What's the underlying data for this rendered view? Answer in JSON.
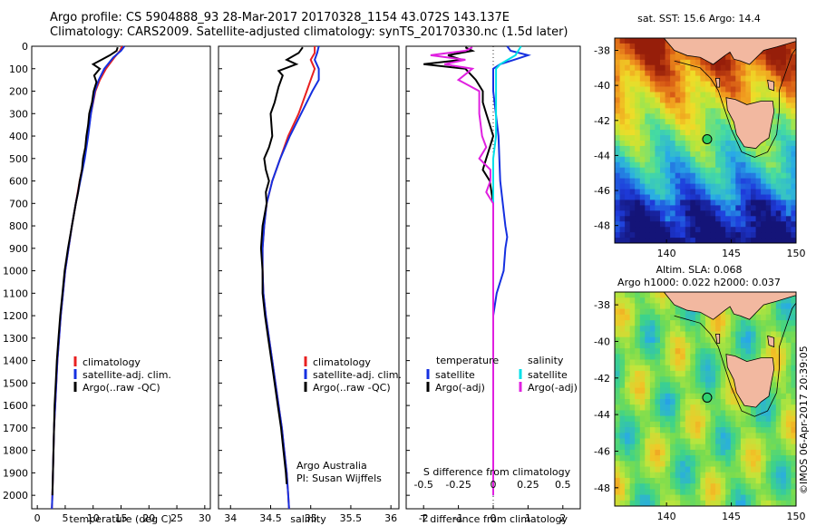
{
  "header": {
    "line1": "Argo profile: CS 5904888_93 28-Mar-2017 20170328_1154 43.072S 143.137E",
    "line2": "Climatology: CARS2009. Satellite-adjusted climatology: synTS_20170330.nc (1.5d later)"
  },
  "credit": "©IMOS 06-Apr-2017 20:39:05",
  "colors": {
    "climatology": "#e82020",
    "satellite": "#1530e0",
    "argo": "#000000",
    "sal_satellite": "#00e0e8",
    "sal_argo": "#e020e0",
    "land": "#f2b8a0"
  },
  "chart_data": [
    {
      "type": "line",
      "name": "temperature-profile",
      "xlabel": "temperature (deg C)",
      "ylabel": "",
      "xlim": [
        -1,
        31
      ],
      "ylim": [
        2060,
        0
      ],
      "xticks": [
        0,
        5,
        10,
        15,
        20,
        25,
        30
      ],
      "yticks": [
        0,
        100,
        200,
        300,
        400,
        500,
        600,
        700,
        800,
        900,
        1000,
        1100,
        1200,
        1300,
        1400,
        1500,
        1600,
        1700,
        1800,
        1900,
        2000
      ],
      "legend": [
        "climatology",
        "satellite-adj. clim.",
        "Argo(..raw -QC)"
      ],
      "series": [
        {
          "name": "climatology",
          "color": "#e82020",
          "depth": [
            0,
            20,
            50,
            100,
            150,
            200,
            300,
            400,
            500,
            600,
            700,
            800,
            900,
            1000,
            1100,
            1200,
            1300,
            1400,
            1500,
            1600,
            1700,
            1800,
            1900,
            2000,
            2060
          ],
          "values": [
            15.2,
            14.8,
            13.8,
            12.3,
            11.2,
            10.4,
            9.6,
            9.0,
            8.4,
            7.6,
            6.9,
            6.2,
            5.6,
            5.0,
            4.6,
            4.2,
            3.9,
            3.6,
            3.4,
            3.2,
            3.0,
            2.9,
            2.8,
            2.7,
            2.6
          ]
        },
        {
          "name": "satellite-adj. clim.",
          "color": "#1530e0",
          "depth": [
            0,
            20,
            50,
            100,
            150,
            200,
            300,
            400,
            500,
            600,
            700,
            800,
            900,
            1000,
            1100,
            1200,
            1300,
            1400,
            1500,
            1600,
            1700,
            1800,
            1900,
            2000,
            2060
          ],
          "values": [
            15.6,
            15.0,
            13.6,
            12.0,
            11.0,
            10.3,
            9.6,
            9.1,
            8.5,
            7.7,
            6.9,
            6.2,
            5.6,
            5.0,
            4.6,
            4.2,
            3.9,
            3.6,
            3.4,
            3.2,
            3.0,
            2.9,
            2.8,
            2.7,
            2.6
          ]
        },
        {
          "name": "Argo(..raw -QC)",
          "color": "#000000",
          "depth": [
            5,
            20,
            40,
            60,
            80,
            100,
            130,
            160,
            200,
            250,
            300,
            350,
            400,
            450,
            500,
            550,
            600,
            650,
            700,
            800,
            900,
            1000,
            1100,
            1200,
            1300,
            1400,
            1500,
            1600,
            1700,
            1800,
            1900,
            2000
          ],
          "values": [
            14.4,
            14.2,
            13.0,
            11.5,
            10.0,
            11.2,
            10.2,
            10.6,
            10.1,
            9.8,
            9.3,
            9.1,
            8.8,
            8.6,
            8.2,
            8.0,
            7.6,
            7.3,
            6.9,
            6.2,
            5.5,
            4.9,
            4.5,
            4.1,
            3.8,
            3.5,
            3.3,
            3.1,
            3.0,
            2.9,
            2.8,
            2.7
          ]
        }
      ]
    },
    {
      "type": "line",
      "name": "salinity-profile",
      "xlabel": "salinity",
      "ylabel": "",
      "xlim": [
        33.85,
        36.1
      ],
      "ylim": [
        2060,
        0
      ],
      "xticks": [
        34,
        34.5,
        35,
        35.5,
        36
      ],
      "xticklabels": [
        "34",
        "34.5",
        "35",
        "35.5",
        "36"
      ],
      "legend": [
        "climatology",
        "satellite-adj. clim.",
        "Argo(..raw -QC)"
      ],
      "annotation": [
        "Argo Australia",
        "PI: Susan Wijffels"
      ],
      "series": [
        {
          "name": "climatology",
          "color": "#e82020",
          "depth": [
            0,
            30,
            60,
            100,
            150,
            200,
            300,
            400,
            500,
            600,
            700,
            800,
            900,
            1000,
            1100,
            1200,
            1300,
            1400,
            1500,
            1600,
            1700,
            1800,
            1900,
            2000,
            2060
          ],
          "values": [
            35.05,
            35.05,
            35.0,
            35.05,
            35.0,
            34.95,
            34.85,
            34.72,
            34.62,
            34.52,
            34.45,
            34.42,
            34.4,
            34.4,
            34.41,
            34.44,
            34.48,
            34.52,
            34.56,
            34.6,
            34.64,
            34.67,
            34.7,
            34.72,
            34.73
          ]
        },
        {
          "name": "satellite-adj. clim.",
          "color": "#1530e0",
          "depth": [
            0,
            30,
            60,
            100,
            150,
            200,
            300,
            400,
            500,
            600,
            700,
            800,
            900,
            1000,
            1100,
            1200,
            1300,
            1400,
            1500,
            1600,
            1700,
            1800,
            1900,
            2000,
            2060
          ],
          "values": [
            35.1,
            35.08,
            35.05,
            35.1,
            35.1,
            35.02,
            34.88,
            34.74,
            34.62,
            34.52,
            34.45,
            34.42,
            34.4,
            34.4,
            34.41,
            34.44,
            34.48,
            34.52,
            34.56,
            34.6,
            34.64,
            34.67,
            34.7,
            34.72,
            34.73
          ]
        },
        {
          "name": "Argo(..raw -QC)",
          "color": "#000000",
          "depth": [
            5,
            30,
            60,
            80,
            110,
            130,
            180,
            250,
            300,
            400,
            450,
            500,
            550,
            600,
            650,
            700,
            800,
            900,
            1000,
            1100,
            1200,
            1300,
            1400,
            1500,
            1600,
            1700,
            1800,
            1900,
            1950
          ],
          "values": [
            34.9,
            34.85,
            34.7,
            34.82,
            34.6,
            34.65,
            34.6,
            34.55,
            34.5,
            34.52,
            34.48,
            34.42,
            34.44,
            34.48,
            34.44,
            34.45,
            34.4,
            34.38,
            34.4,
            34.4,
            34.43,
            34.47,
            34.51,
            34.55,
            34.59,
            34.63,
            34.66,
            34.69,
            34.7
          ]
        }
      ]
    },
    {
      "type": "line",
      "name": "difference-profile",
      "xlabel": "T difference from climatology",
      "xlabel_top": "S difference from climatology",
      "xlim": [
        -2.5,
        2.5
      ],
      "ylim": [
        2060,
        0
      ],
      "xticks_T": [
        -2,
        -1,
        0,
        1,
        2
      ],
      "xticks_S": [
        -0.5,
        -0.25,
        0,
        0.25,
        0.5
      ],
      "xticklabels_S": [
        "-0.5",
        "-0.25",
        "0",
        "0.25",
        "0.5"
      ],
      "legend_temperature": {
        "title": "temperature",
        "items": [
          "satellite",
          "Argo(-adj)"
        ]
      },
      "legend_salinity": {
        "title": "salinity",
        "items": [
          "satellite",
          "Argo(-adj)"
        ]
      },
      "series": [
        {
          "name": "temperature satellite",
          "color": "#1530e0",
          "depth": [
            0,
            20,
            40,
            60,
            80,
            100,
            200,
            400,
            600,
            800,
            850,
            900,
            1000,
            1100,
            1200,
            1400,
            1600,
            1800,
            2000
          ],
          "values": [
            0.4,
            0.5,
            1.0,
            0.6,
            0.2,
            0.0,
            0.0,
            0.15,
            0.2,
            0.35,
            0.4,
            0.35,
            0.3,
            0.1,
            0.0,
            0.0,
            0.0,
            0.0,
            0.0
          ]
        },
        {
          "name": "temperature Argo(-adj)",
          "color": "#000000",
          "depth": [
            5,
            20,
            40,
            60,
            80,
            100,
            150,
            200,
            250,
            300,
            350,
            400,
            450,
            500,
            550,
            600,
            700,
            800,
            900,
            1000,
            1100,
            1200,
            1400,
            1600,
            1800,
            2000
          ],
          "values": [
            -0.8,
            -0.6,
            -1.3,
            -0.9,
            -2.0,
            -0.8,
            -0.5,
            -0.3,
            -0.3,
            -0.2,
            -0.1,
            0.0,
            -0.1,
            -0.2,
            -0.3,
            -0.1,
            0.0,
            0.0,
            0.0,
            0.0,
            0.0,
            0.0,
            0.0,
            0.0,
            0.0,
            0.0
          ]
        },
        {
          "name": "salinity satellite",
          "color": "#00e0e8",
          "depth": [
            0,
            20,
            40,
            80,
            100,
            200,
            300,
            400,
            500,
            600,
            700,
            800,
            1000,
            1200,
            1400,
            1600,
            1800,
            2000
          ],
          "values": [
            0.2,
            0.18,
            0.16,
            0.05,
            0.02,
            0.02,
            0.02,
            0.02,
            0.0,
            0.0,
            0.0,
            0.0,
            0.0,
            0.0,
            0.0,
            0.0,
            0.0,
            0.0
          ]
        },
        {
          "name": "salinity Argo(-adj)",
          "color": "#e020e0",
          "depth": [
            5,
            20,
            40,
            60,
            80,
            100,
            150,
            200,
            250,
            300,
            400,
            450,
            500,
            550,
            600,
            650,
            700,
            800,
            900,
            1000,
            1100,
            1200,
            1400,
            1600,
            1800,
            2000
          ],
          "values": [
            -0.15,
            -0.2,
            -0.45,
            -0.2,
            -0.35,
            -0.15,
            -0.25,
            -0.1,
            -0.1,
            -0.1,
            -0.08,
            -0.05,
            -0.1,
            -0.02,
            -0.02,
            -0.05,
            0.0,
            0.0,
            0.0,
            0.0,
            0.0,
            0.0,
            0.0,
            0.0,
            0.0,
            0.0
          ]
        }
      ]
    },
    {
      "type": "heatmap",
      "name": "sst-map",
      "title": "sat. SST: 15.6  Argo: 14.4",
      "xlim": [
        136,
        150
      ],
      "ylim": [
        -49,
        -37.3
      ],
      "xticks": [
        140,
        145,
        150
      ],
      "yticks": [
        -38,
        -40,
        -42,
        -44,
        -46,
        -48
      ],
      "argo_position": {
        "lon": 143.137,
        "lat": -43.072
      }
    },
    {
      "type": "heatmap",
      "name": "sla-map",
      "title": "Altim. SLA: 0.068",
      "subtitle": "Argo h1000: 0.022  h2000: 0.037",
      "xlim": [
        136,
        150
      ],
      "ylim": [
        -49,
        -37.3
      ],
      "xticks": [
        140,
        145,
        150
      ],
      "yticks": [
        -38,
        -40,
        -42,
        -44,
        -46,
        -48
      ],
      "argo_position": {
        "lon": 143.137,
        "lat": -43.072
      }
    }
  ]
}
